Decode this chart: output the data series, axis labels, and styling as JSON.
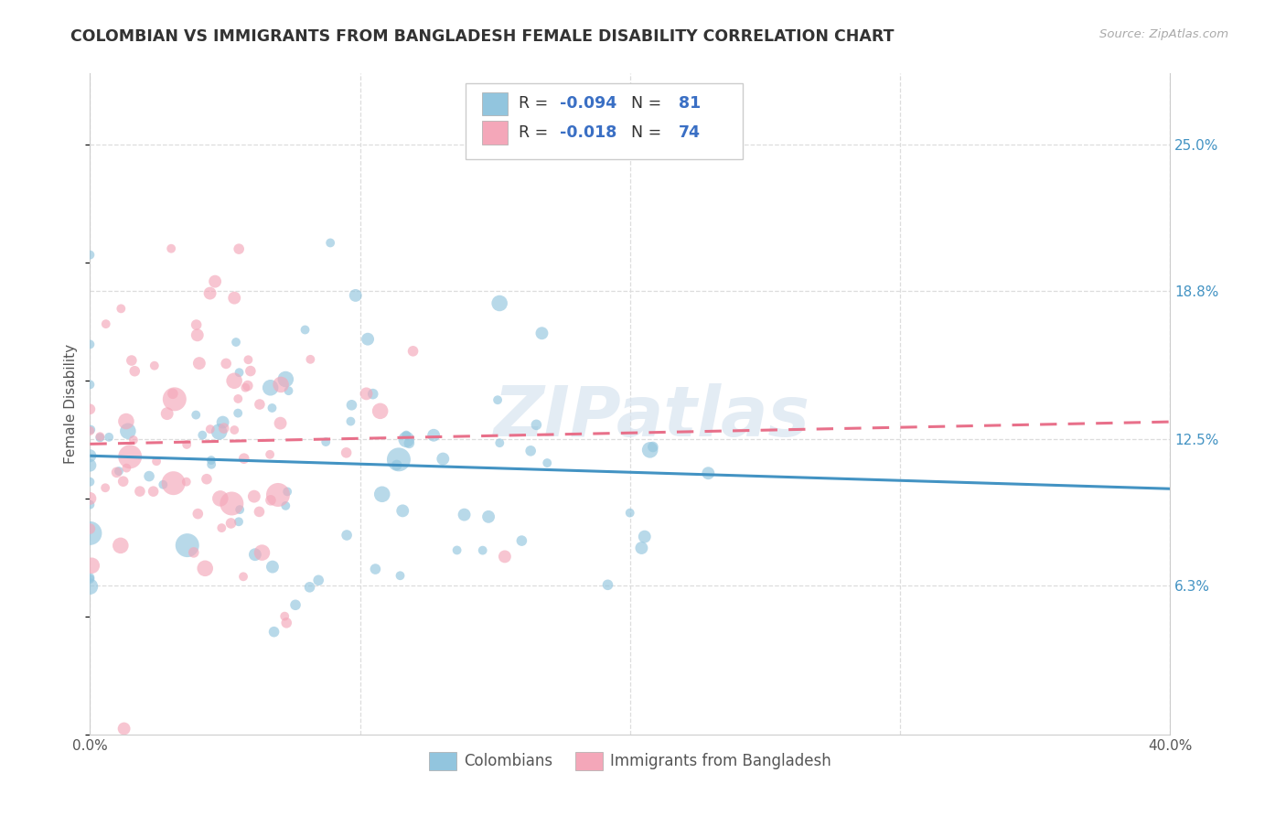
{
  "title": "COLOMBIAN VS IMMIGRANTS FROM BANGLADESH FEMALE DISABILITY CORRELATION CHART",
  "source": "Source: ZipAtlas.com",
  "ylabel": "Female Disability",
  "xlim": [
    0.0,
    0.4
  ],
  "ylim": [
    0.0,
    0.28
  ],
  "xticks": [
    0.0,
    0.1,
    0.2,
    0.3,
    0.4
  ],
  "xticklabels": [
    "0.0%",
    "",
    "",
    "",
    "40.0%"
  ],
  "ytick_labels_right": [
    "25.0%",
    "18.8%",
    "12.5%",
    "6.3%"
  ],
  "ytick_vals_right": [
    0.25,
    0.188,
    0.125,
    0.063
  ],
  "color_blue": "#92c5de",
  "color_pink": "#f4a7b9",
  "color_line_blue": "#4393c3",
  "color_line_pink": "#e8708a",
  "color_right_axis": "#4393c3",
  "watermark": "ZIPatlas",
  "bg_color": "#ffffff",
  "grid_color": "#dddddd",
  "label_colombians": "Colombians",
  "label_bangladesh": "Immigrants from Bangladesh",
  "seed": 42,
  "n_colombians": 81,
  "n_bangladesh": 74,
  "R_colombians": -0.094,
  "R_bangladesh": -0.018,
  "legend_blue_text": "R = ",
  "legend_blue_r": "-0.094",
  "legend_blue_n_label": "N = ",
  "legend_blue_n": "81",
  "legend_pink_text": "R = ",
  "legend_pink_r": "-0.018",
  "legend_pink_n_label": "N = ",
  "legend_pink_n": "74"
}
